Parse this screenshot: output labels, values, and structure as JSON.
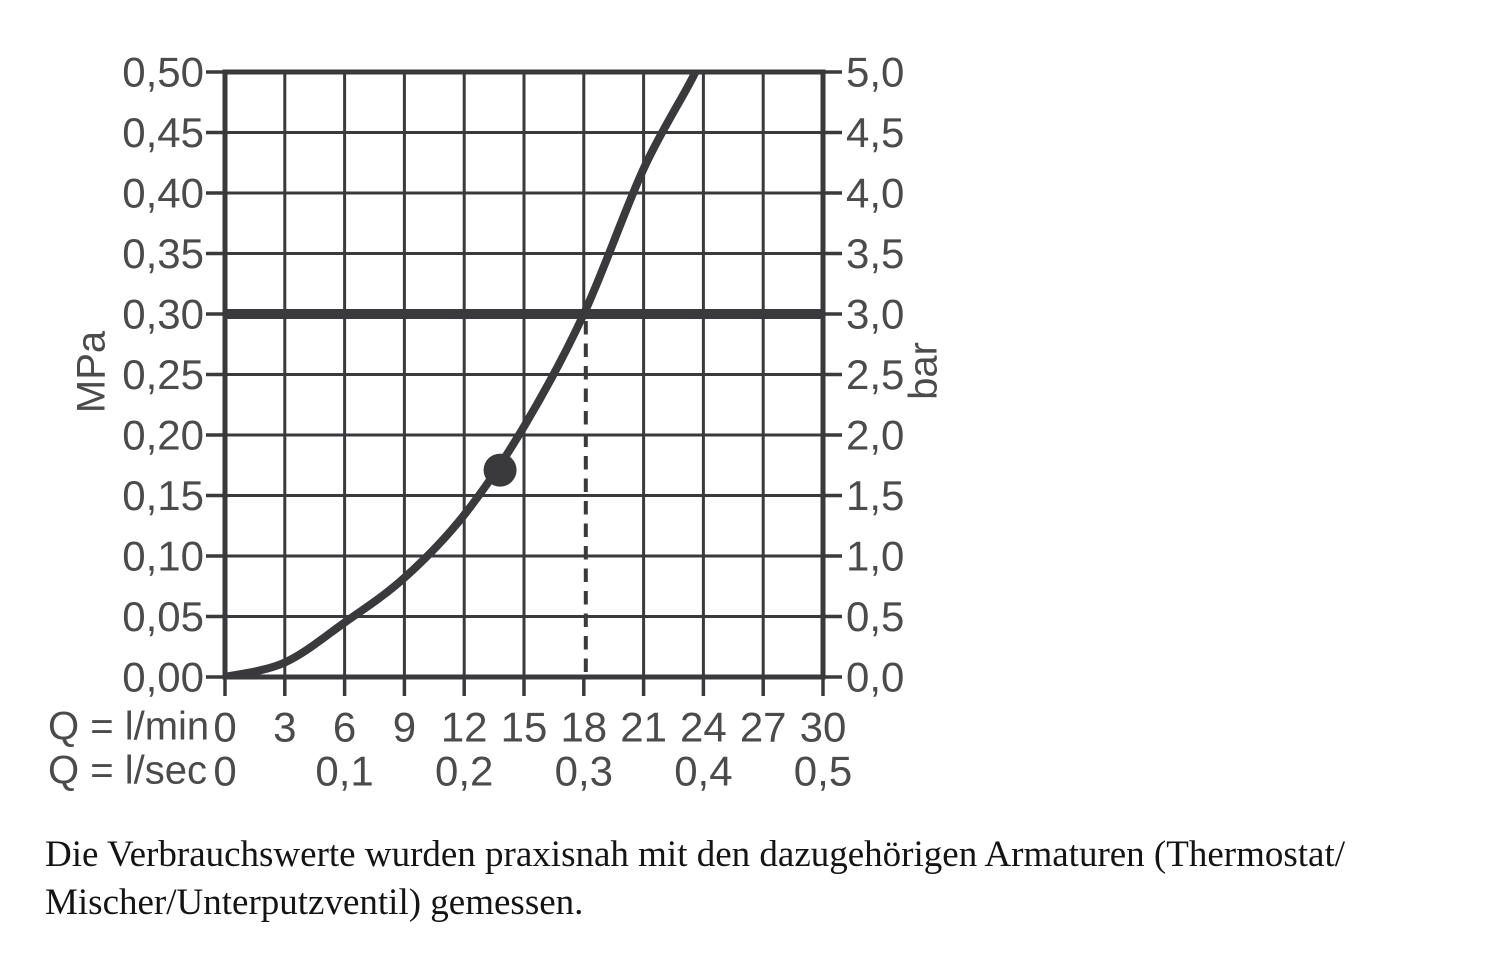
{
  "note": {
    "line1": "Die Verbrauchswerte wurden praxisnah mit den dazugehörigen Armaturen (Thermostat/",
    "line2": "Mischer/Unterputzventil) gemessen."
  },
  "chart_data": {
    "type": "line",
    "title": "",
    "legend": "none",
    "grid": true,
    "x_axis_lmin": {
      "label": "Q = l/min",
      "min": 0,
      "max": 30,
      "grid_step": 3,
      "ticks": [
        {
          "q": 0,
          "label": "0"
        },
        {
          "q": 3,
          "label": "3"
        },
        {
          "q": 6,
          "label": "6"
        },
        {
          "q": 9,
          "label": "9"
        },
        {
          "q": 12,
          "label": "12"
        },
        {
          "q": 15,
          "label": "15"
        },
        {
          "q": 18,
          "label": "18"
        },
        {
          "q": 21,
          "label": "21"
        },
        {
          "q": 24,
          "label": "24"
        },
        {
          "q": 27,
          "label": "27"
        },
        {
          "q": 30,
          "label": "30"
        }
      ]
    },
    "x_axis_lsec": {
      "label": "Q = l/sec",
      "ticks": [
        {
          "q": 0,
          "label": "0"
        },
        {
          "q": 6,
          "label": "0,1"
        },
        {
          "q": 12,
          "label": "0,2"
        },
        {
          "q": 18,
          "label": "0,3"
        },
        {
          "q": 24,
          "label": "0,4"
        },
        {
          "q": 30,
          "label": "0,5"
        }
      ]
    },
    "y_axis_left": {
      "label": "MPa",
      "min": 0,
      "max": 0.5,
      "grid_step": 0.05,
      "ticks": [
        {
          "mpa": 0.5,
          "label": "0,50"
        },
        {
          "mpa": 0.45,
          "label": "0,45"
        },
        {
          "mpa": 0.4,
          "label": "0,40"
        },
        {
          "mpa": 0.35,
          "label": "0,35"
        },
        {
          "mpa": 0.3,
          "label": "0,30"
        },
        {
          "mpa": 0.25,
          "label": "0,25"
        },
        {
          "mpa": 0.2,
          "label": "0,20"
        },
        {
          "mpa": 0.15,
          "label": "0,15"
        },
        {
          "mpa": 0.1,
          "label": "0,10"
        },
        {
          "mpa": 0.05,
          "label": "0,05"
        },
        {
          "mpa": 0.0,
          "label": "0,00"
        }
      ]
    },
    "y_axis_right": {
      "label": "bar",
      "ticks": [
        {
          "bar": 5.0,
          "label": "5,0"
        },
        {
          "bar": 4.5,
          "label": "4,5"
        },
        {
          "bar": 4.0,
          "label": "4,0"
        },
        {
          "bar": 3.5,
          "label": "3,5"
        },
        {
          "bar": 3.0,
          "label": "3,0"
        },
        {
          "bar": 2.5,
          "label": "2,5"
        },
        {
          "bar": 2.0,
          "label": "2,0"
        },
        {
          "bar": 1.5,
          "label": "1,5"
        },
        {
          "bar": 1.0,
          "label": "1,0"
        },
        {
          "bar": 0.5,
          "label": "0,5"
        },
        {
          "bar": 0.0,
          "label": "0,0"
        }
      ]
    },
    "flow_curve_points_q_lmin_vs_mpa": [
      [
        0,
        0
      ],
      [
        3,
        0.012
      ],
      [
        6,
        0.045
      ],
      [
        9,
        0.082
      ],
      [
        12,
        0.134
      ],
      [
        15,
        0.207
      ],
      [
        18,
        0.3
      ],
      [
        21,
        0.42
      ],
      [
        23.6,
        0.5
      ],
      [
        24.3,
        0.535
      ]
    ],
    "marker_point": {
      "q_lmin": 13.8,
      "mpa": 0.171
    },
    "reference_pressure_line_mpa": 0.3,
    "dashed_guide_line_q_lmin": 18,
    "colors": {
      "ink": "#3a3a3c",
      "tick_label": "#4b4b4d",
      "note_text": "#141414",
      "background": "#ffffff"
    }
  }
}
